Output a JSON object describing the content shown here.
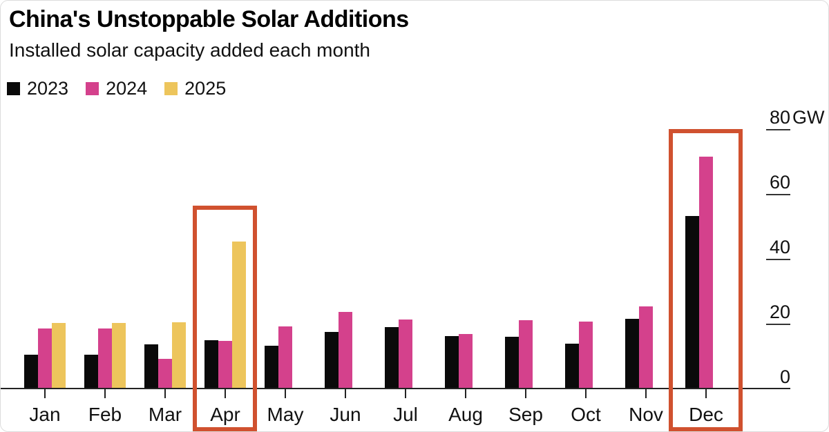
{
  "title": "China's Unstoppable Solar Additions",
  "subtitle": "Installed solar capacity added each month",
  "legend": [
    {
      "label": "2023",
      "color": "#0a0a0a"
    },
    {
      "label": "2024",
      "color": "#d4418c"
    },
    {
      "label": "2025",
      "color": "#edc55c"
    }
  ],
  "colors": {
    "bar_2023": "#0a0a0a",
    "bar_2024": "#d4418c",
    "bar_2025": "#edc55c",
    "highlight": "#d0512f",
    "axis": "#222222",
    "background": "#ffffff"
  },
  "chart_data": {
    "type": "bar",
    "categories": [
      "Jan",
      "Feb",
      "Mar",
      "Apr",
      "May",
      "Jun",
      "Jul",
      "Aug",
      "Sep",
      "Oct",
      "Nov",
      "Dec"
    ],
    "series": [
      {
        "name": "2023",
        "color": "#0a0a0a",
        "values": [
          10.2,
          10.2,
          13.3,
          14.7,
          12.9,
          17.2,
          18.7,
          16.0,
          15.8,
          13.6,
          21.3,
          53.0
        ]
      },
      {
        "name": "2024",
        "color": "#d4418c",
        "values": [
          18.4,
          18.4,
          9.0,
          14.4,
          19.0,
          23.3,
          21.1,
          16.5,
          20.9,
          20.4,
          25.0,
          71.3
        ]
      },
      {
        "name": "2025",
        "color": "#edc55c",
        "values": [
          19.9,
          19.9,
          20.2,
          45.2,
          null,
          null,
          null,
          null,
          null,
          null,
          null,
          null
        ]
      }
    ],
    "unit": "GW",
    "y_ticks": [
      0,
      20,
      40,
      60,
      80
    ],
    "ylim": [
      0,
      80
    ],
    "grid": false,
    "legend_position": "top-left",
    "highlighted_months": [
      "Apr",
      "Dec"
    ],
    "highlight_color": "#d0512f"
  }
}
